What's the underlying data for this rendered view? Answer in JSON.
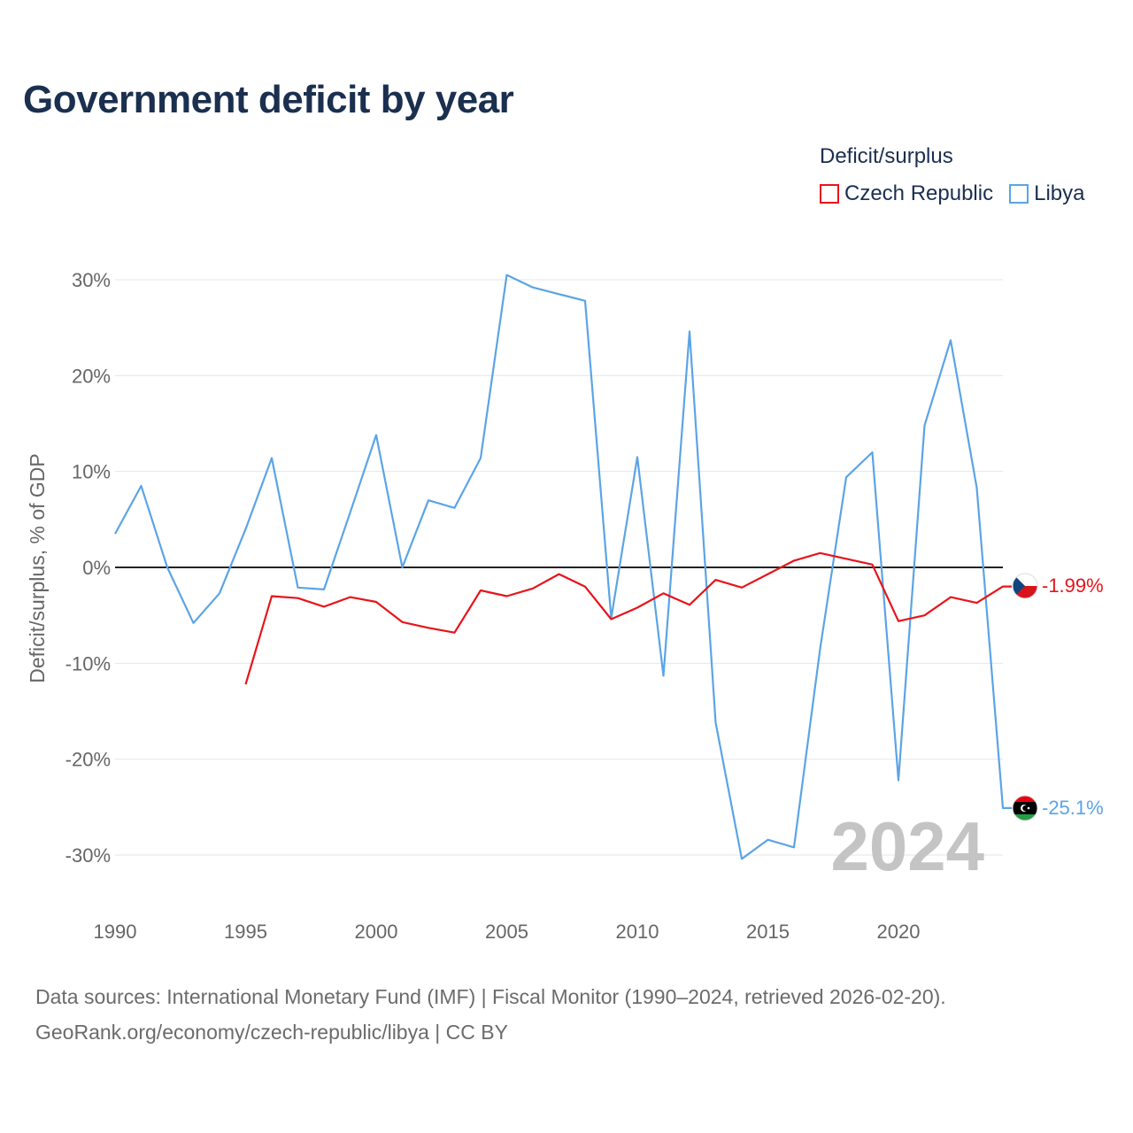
{
  "title": "Government deficit by year",
  "legend": {
    "title": "Deficit/surplus",
    "items": [
      {
        "name": "Czech Republic",
        "color": "#e8141a"
      },
      {
        "name": "Libya",
        "color": "#5ba4e6"
      }
    ]
  },
  "chart_data": {
    "type": "line",
    "title": "Government deficit by year",
    "xlabel": "",
    "ylabel": "Deficit/surplus, % of GDP",
    "xlim": [
      1990,
      2024
    ],
    "ylim": [
      -35,
      30
    ],
    "x_ticks": [
      1990,
      1995,
      2000,
      2005,
      2010,
      2015,
      2020
    ],
    "y_ticks": [
      30,
      20,
      10,
      0,
      -10,
      -20,
      -30
    ],
    "y_tick_labels": [
      "30%",
      "20%",
      "10%",
      "0%",
      "-10%",
      "-20%",
      "-30%"
    ],
    "grid": true,
    "legend_position": "top-right",
    "highlight_year": "2024",
    "series": [
      {
        "name": "Czech Republic",
        "color": "#e8141a",
        "end_label": "-1.99%",
        "x": [
          1995,
          1996,
          1997,
          1998,
          1999,
          2000,
          2001,
          2002,
          2003,
          2004,
          2005,
          2006,
          2007,
          2008,
          2009,
          2010,
          2011,
          2012,
          2013,
          2014,
          2015,
          2016,
          2017,
          2018,
          2019,
          2020,
          2021,
          2022,
          2023,
          2024
        ],
        "values": [
          -12.2,
          -3.0,
          -3.2,
          -4.1,
          -3.1,
          -3.6,
          -5.7,
          -6.3,
          -6.8,
          -2.4,
          -3.0,
          -2.2,
          -0.7,
          -2.0,
          -5.4,
          -4.2,
          -2.7,
          -3.9,
          -1.3,
          -2.1,
          -0.7,
          0.7,
          1.5,
          0.9,
          0.3,
          -5.6,
          -5.0,
          -3.1,
          -3.7,
          -1.99
        ]
      },
      {
        "name": "Libya",
        "color": "#5ba4e6",
        "end_label": "-25.1%",
        "x": [
          1990,
          1991,
          1992,
          1993,
          1994,
          1995,
          1996,
          1997,
          1998,
          1999,
          2000,
          2001,
          2002,
          2003,
          2004,
          2005,
          2006,
          2007,
          2008,
          2009,
          2010,
          2011,
          2012,
          2013,
          2014,
          2015,
          2016,
          2017,
          2018,
          2019,
          2020,
          2021,
          2022,
          2023,
          2024
        ],
        "values": [
          3.5,
          8.5,
          0.0,
          -5.8,
          -2.7,
          4.0,
          11.4,
          -2.1,
          -2.3,
          5.7,
          13.8,
          0.0,
          7.0,
          6.2,
          11.4,
          30.5,
          29.2,
          28.5,
          27.8,
          -5.3,
          11.5,
          -11.3,
          24.6,
          -16.2,
          -30.4,
          -28.4,
          -29.2,
          -8.5,
          9.4,
          12.0,
          -22.2,
          14.8,
          23.7,
          8.3,
          -25.1
        ]
      }
    ]
  },
  "footer": {
    "line1": "Data sources: International Monetary Fund (IMF) | Fiscal Monitor (1990–2024, retrieved 2026-02-20).",
    "line2": "GeoRank.org/economy/czech-republic/libya | CC BY"
  }
}
